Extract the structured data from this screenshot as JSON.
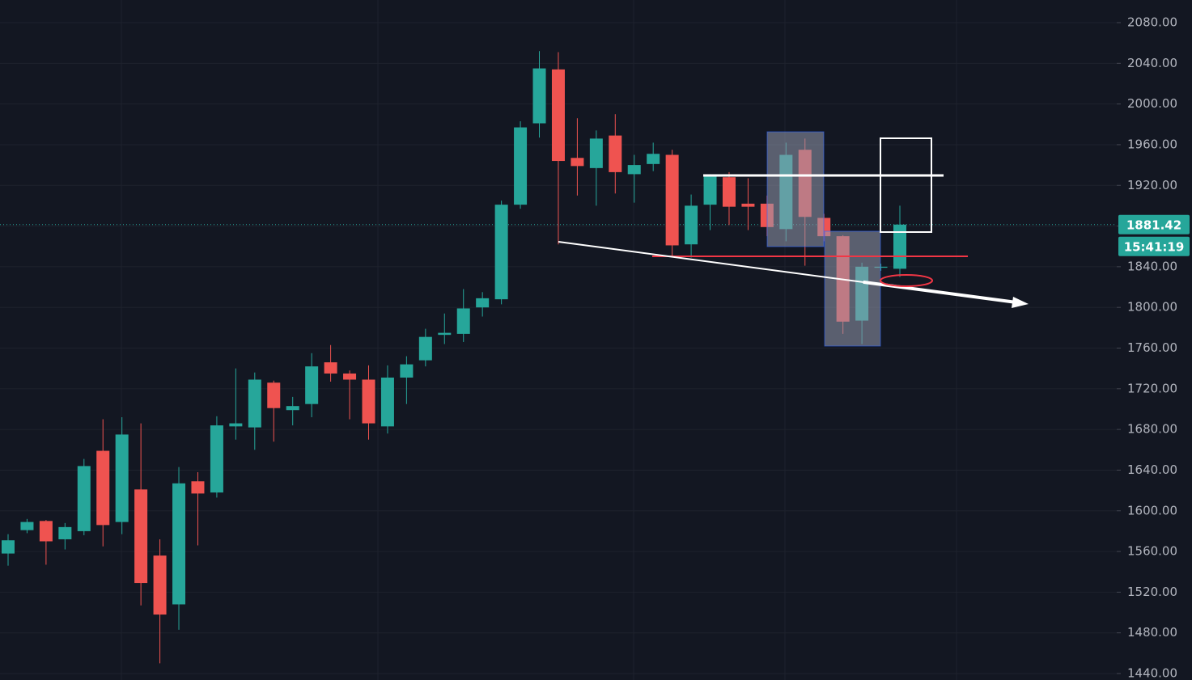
{
  "chart_data": {
    "type": "candlestick",
    "categories": [
      null,
      null,
      null,
      null,
      null,
      null,
      null,
      null,
      null,
      null,
      null,
      null,
      null,
      null,
      null,
      null,
      null,
      null,
      null,
      null,
      null,
      null,
      null,
      null,
      null,
      null,
      null,
      null,
      null,
      null,
      null,
      null,
      null,
      null,
      null,
      null,
      null,
      null,
      null,
      null,
      null,
      null,
      null,
      null,
      null,
      null,
      null,
      null
    ],
    "open": [
      1558,
      1581,
      1590,
      1572,
      1580,
      1659,
      1589,
      1621,
      1556,
      1508,
      1629,
      1618,
      1683,
      1682,
      1726,
      1699,
      1705,
      1746,
      1735,
      1729,
      1683,
      1731,
      1748,
      1773,
      1774,
      1800,
      1808,
      1901,
      1981,
      2034,
      1947,
      1937,
      1969,
      1931,
      1941,
      1950,
      1862,
      1901,
      1928,
      1902,
      1902,
      1877,
      1955,
      1888,
      1870,
      1787,
      1839,
      1838
    ],
    "high": [
      1577,
      1592,
      1591,
      1588,
      1651,
      1690,
      1692,
      1686,
      1572,
      1643,
      1638,
      1693,
      1740,
      1736,
      1728,
      1712,
      1755,
      1763,
      1738,
      1743,
      1743,
      1752,
      1779,
      1794,
      1818,
      1815,
      1905,
      1983,
      2052,
      2051,
      1986,
      1974,
      1990,
      1950,
      1962,
      1955,
      1911,
      1931,
      1933,
      1927,
      1910,
      1962,
      1966,
      1892,
      1871,
      1844,
      1843,
      1900
    ],
    "low": [
      1546,
      1578,
      1547,
      1562,
      1576,
      1565,
      1577,
      1507,
      1450,
      1483,
      1566,
      1613,
      1670,
      1660,
      1668,
      1684,
      1692,
      1727,
      1690,
      1670,
      1676,
      1705,
      1742,
      1764,
      1766,
      1791,
      1803,
      1897,
      1967,
      1862,
      1910,
      1900,
      1912,
      1903,
      1934,
      1850,
      1849,
      1876,
      1881,
      1876,
      1870,
      1865,
      1841,
      1865,
      1774,
      1764,
      1836,
      1830
    ],
    "close": [
      1571,
      1589,
      1570,
      1584,
      1644,
      1586,
      1675,
      1529,
      1498,
      1627,
      1617,
      1684,
      1686,
      1729,
      1701,
      1703,
      1742,
      1735,
      1729,
      1686,
      1731,
      1744,
      1771,
      1775,
      1799,
      1809,
      1901,
      1977,
      2035,
      1944,
      1939,
      1966,
      1933,
      1940,
      1951,
      1861,
      1900,
      1929,
      1899,
      1899,
      1879,
      1950,
      1889,
      1870,
      1786,
      1840,
      1840,
      1881.42
    ],
    "up_color": "#26a69a",
    "down_color": "#ef5350",
    "ylim": [
      1440,
      2080
    ],
    "yticks": [
      {
        "value": 1440,
        "label": "1440.00"
      },
      {
        "value": 1480,
        "label": "1480.00"
      },
      {
        "value": 1520,
        "label": "1520.00"
      },
      {
        "value": 1560,
        "label": "1560.00"
      },
      {
        "value": 1600,
        "label": "1600.00"
      },
      {
        "value": 1640,
        "label": "1640.00"
      },
      {
        "value": 1680,
        "label": "1680.00"
      },
      {
        "value": 1720,
        "label": "1720.00"
      },
      {
        "value": 1760,
        "label": "1760.00"
      },
      {
        "value": 1800,
        "label": "1800.00"
      },
      {
        "value": 1840,
        "label": "1840.00"
      },
      {
        "value": 1880,
        "label": "1880.00"
      },
      {
        "value": 1920,
        "label": "1920.00"
      },
      {
        "value": 1960,
        "label": "1960.00"
      },
      {
        "value": 2000,
        "label": "2000.00"
      },
      {
        "value": 2040,
        "label": "2040.00"
      },
      {
        "value": 2080,
        "label": "2080.00"
      }
    ],
    "grid": true,
    "last_price": 1881.42,
    "countdown": "15:41:19"
  }
}
